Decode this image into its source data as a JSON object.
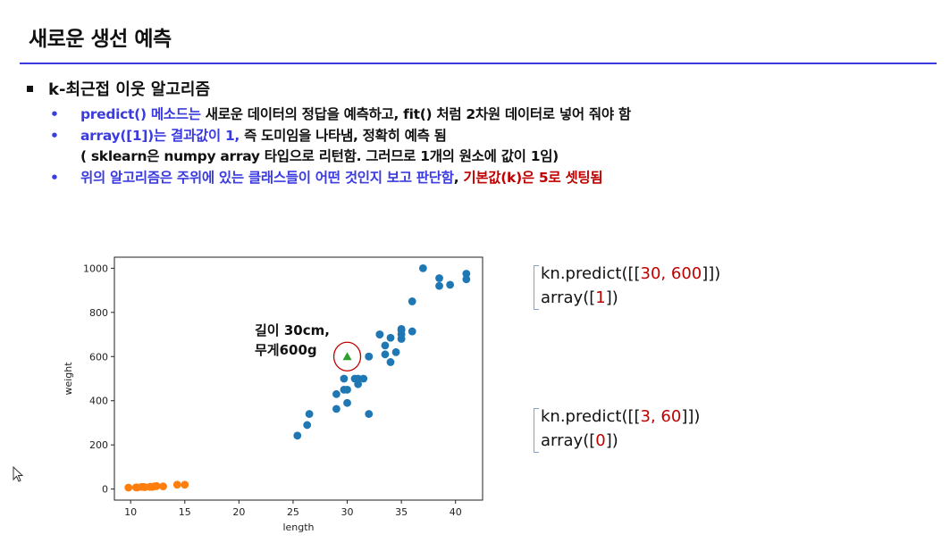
{
  "slide": {
    "title": "새로운 생선 예측",
    "main_bullet": "k-최근접 이웃 알고리즘",
    "items": [
      {
        "blue": "predict() 메소드는",
        "black": " 새로운 데이터의 정답을 예측하고,  fit() 처럼 2차원 데이터로 넣어 줘야 함"
      },
      {
        "blue": "array([1])는 결과값이 1,",
        "black": " 즉 도미임을 나타냄, 정확히 예측 됨"
      },
      {
        "black": "( sklearn은 numpy array 타입으로  리턴함. 그러므로 1개의 원소에 값이 1임)"
      },
      {
        "blue": "위의 알고리즘은 주위에 있는 클래스들이 어떤 것인지 보고 판단함",
        "black": ", ",
        "red": "기본값(k)은 5로 셋팅됨"
      }
    ]
  },
  "code": {
    "block1": {
      "prefix": "kn.predict([[",
      "a": "30",
      "sep": ", ",
      "b": "600",
      "suffix": "]])",
      "result_prefix": "array([",
      "result": "1",
      "result_suffix": "])"
    },
    "block2": {
      "prefix": "kn.predict([[",
      "a": "3",
      "sep": ", ",
      "b": "60",
      "suffix": "]])",
      "result_prefix": "array([",
      "result": "0",
      "result_suffix": "])"
    }
  },
  "chart_data": {
    "type": "scatter",
    "xlabel": "length",
    "ylabel": "weight",
    "xlim": [
      8.5,
      42.5
    ],
    "ylim": [
      -50,
      1050
    ],
    "xticks": [
      10,
      15,
      20,
      25,
      30,
      35,
      40
    ],
    "yticks": [
      0,
      200,
      400,
      600,
      800,
      1000
    ],
    "annotation": [
      "길이 30cm,",
      "무게600g"
    ],
    "series": [
      {
        "color": "#1f77b4",
        "marker": "circle",
        "points": [
          [
            25.4,
            242
          ],
          [
            26.3,
            290
          ],
          [
            26.5,
            340
          ],
          [
            29.0,
            363
          ],
          [
            29.0,
            430
          ],
          [
            29.7,
            450
          ],
          [
            29.7,
            500
          ],
          [
            30.0,
            390
          ],
          [
            30.0,
            450
          ],
          [
            30.7,
            500
          ],
          [
            31.0,
            475
          ],
          [
            31.0,
            500
          ],
          [
            31.5,
            500
          ],
          [
            32.0,
            340
          ],
          [
            32.0,
            600
          ],
          [
            32.0,
            600
          ],
          [
            33.0,
            700
          ],
          [
            33.0,
            700
          ],
          [
            33.5,
            610
          ],
          [
            33.5,
            650
          ],
          [
            34.0,
            575
          ],
          [
            34.0,
            685
          ],
          [
            34.5,
            620
          ],
          [
            35.0,
            680
          ],
          [
            35.0,
            700
          ],
          [
            35.0,
            725
          ],
          [
            35.0,
            720
          ],
          [
            36.0,
            714
          ],
          [
            36.0,
            850
          ],
          [
            37.0,
            1000
          ],
          [
            38.5,
            920
          ],
          [
            38.5,
            955
          ],
          [
            39.5,
            925
          ],
          [
            41.0,
            975
          ],
          [
            41.0,
            950
          ]
        ]
      },
      {
        "color": "#ff7f0e",
        "marker": "circle",
        "points": [
          [
            9.8,
            6.7
          ],
          [
            10.5,
            7.5
          ],
          [
            10.6,
            7.0
          ],
          [
            11.0,
            9.7
          ],
          [
            11.2,
            9.8
          ],
          [
            11.3,
            8.7
          ],
          [
            11.8,
            10.0
          ],
          [
            11.8,
            9.9
          ],
          [
            12.0,
            9.8
          ],
          [
            12.2,
            12.2
          ],
          [
            12.4,
            13.4
          ],
          [
            13.0,
            12.2
          ],
          [
            14.3,
            19.7
          ],
          [
            15.0,
            19.9
          ]
        ]
      },
      {
        "color": "#2ca02c",
        "marker": "triangle",
        "points": [
          [
            30,
            600
          ]
        ]
      }
    ]
  }
}
